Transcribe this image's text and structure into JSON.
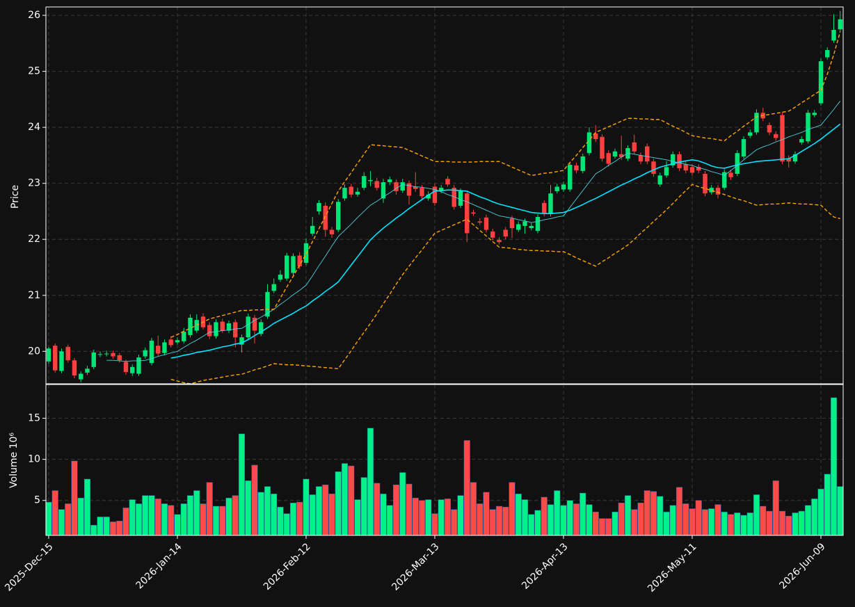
{
  "chart_data": {
    "type": "candlestick",
    "ylabel": "Price",
    "volume_ylabel": "Volume  10⁶",
    "up_color": "#00e676",
    "down_color": "#ff4040",
    "volume_up_color": "#00f08a",
    "volume_down_color": "#ff4a4a",
    "grid": true,
    "ylim": [
      19.42,
      26.15
    ],
    "yticks": [
      20,
      21,
      22,
      23,
      24,
      25,
      26
    ],
    "volume_ylim": [
      0.75,
      19.1
    ],
    "volume_yticks": [
      5,
      10,
      15
    ],
    "categories": [
      "2025-Dec-15",
      null,
      null,
      null,
      null,
      null,
      null,
      null,
      null,
      null,
      null,
      null,
      null,
      null,
      null,
      null,
      null,
      null,
      null,
      null,
      "2026-Jan-14",
      null,
      null,
      null,
      null,
      null,
      null,
      null,
      null,
      null,
      null,
      null,
      null,
      null,
      null,
      null,
      null,
      null,
      null,
      null,
      "2026-Feb-12",
      null,
      null,
      null,
      null,
      null,
      null,
      null,
      null,
      null,
      null,
      null,
      null,
      null,
      null,
      null,
      null,
      null,
      null,
      null,
      "2026-Mar-13",
      null,
      null,
      null,
      null,
      null,
      null,
      null,
      null,
      null,
      null,
      null,
      null,
      null,
      null,
      null,
      null,
      null,
      null,
      null,
      "2026-Apr-13",
      null,
      null,
      null,
      null,
      null,
      null,
      null,
      null,
      null,
      null,
      null,
      null,
      null,
      null,
      null,
      null,
      null,
      null,
      null,
      "2026-May-11",
      null,
      null,
      null,
      null,
      null,
      null,
      null,
      null,
      null,
      null,
      null,
      null,
      null,
      null,
      null,
      null,
      null,
      null,
      null,
      "2026-Jun-09",
      null,
      null,
      null
    ],
    "open": [
      19.82,
      20.1,
      19.65,
      20.08,
      19.84,
      19.5,
      19.62,
      19.72,
      19.94,
      19.95,
      19.97,
      19.93,
      19.81,
      19.61,
      19.6,
      19.91,
      19.79,
      20.1,
      19.97,
      20.21,
      20.16,
      20.18,
      20.29,
      20.37,
      20.62,
      20.47,
      20.27,
      20.53,
      20.37,
      20.52,
      20.12,
      20.25,
      20.6,
      20.31,
      20.62,
      21.08,
      21.28,
      21.3,
      21.4,
      21.71,
      21.58,
      22.1,
      22.5,
      22.6,
      22.17,
      22.17,
      22.73,
      22.94,
      22.8,
      22.92,
      23.04,
      23.04,
      22.73,
      23.02,
      23.02,
      22.87,
      23.0,
      22.94,
      22.92,
      22.73,
      22.94,
      22.86,
      23.08,
      22.92,
      22.6,
      22.82,
      22.48,
      22.32,
      22.39,
      22.14,
      21.99,
      22.17,
      22.37,
      22.17,
      22.24,
      22.2,
      22.15,
      22.65,
      22.45,
      22.86,
      22.89,
      22.89,
      23.32,
      23.22,
      23.54,
      23.89,
      23.83,
      23.54,
      23.48,
      23.52,
      23.44,
      23.73,
      23.5,
      23.66,
      23.39,
      22.98,
      23.14,
      23.32,
      23.52,
      23.34,
      23.29,
      23.29,
      23.17,
      22.84,
      22.92,
      22.92,
      23.19,
      23.17,
      23.48,
      23.85,
      23.91,
      24.26,
      24.04,
      23.88,
      24.22,
      23.45,
      23.39,
      23.73,
      23.75,
      24.22,
      24.43,
      25.25,
      25.55,
      25.75
    ],
    "high": [
      20.08,
      20.14,
      20.05,
      20.12,
      19.88,
      19.64,
      19.74,
      20.03,
      20.0,
      20.01,
      20.01,
      19.97,
      19.85,
      19.77,
      19.94,
      20.07,
      20.24,
      20.28,
      20.21,
      20.27,
      20.25,
      20.42,
      20.66,
      20.66,
      20.68,
      20.52,
      20.57,
      20.58,
      20.55,
      20.57,
      20.3,
      20.67,
      20.65,
      20.57,
      21.2,
      21.3,
      21.45,
      21.76,
      21.75,
      21.77,
      22.02,
      22.4,
      22.7,
      22.66,
      22.22,
      22.72,
      22.98,
      22.99,
      22.92,
      23.2,
      23.22,
      23.1,
      23.08,
      23.12,
      23.07,
      23.08,
      23.05,
      23.2,
      22.97,
      22.86,
      22.99,
      22.97,
      23.13,
      22.97,
      22.91,
      22.87,
      22.53,
      22.38,
      22.44,
      22.19,
      22.04,
      22.22,
      22.42,
      22.32,
      22.37,
      22.29,
      22.45,
      22.7,
      22.97,
      22.99,
      23.03,
      23.38,
      23.37,
      23.53,
      24.0,
      24.04,
      23.88,
      23.59,
      23.62,
      23.85,
      23.68,
      23.87,
      23.55,
      23.71,
      23.44,
      23.19,
      23.4,
      23.57,
      23.57,
      23.39,
      23.34,
      23.34,
      23.22,
      22.97,
      22.97,
      23.25,
      23.24,
      23.59,
      23.84,
      23.96,
      24.32,
      24.35,
      24.09,
      23.93,
      24.27,
      23.5,
      23.57,
      23.84,
      24.31,
      24.31,
      25.23,
      25.43,
      26.02,
      26.08
    ],
    "low": [
      19.78,
      19.62,
      19.61,
      19.8,
      19.52,
      19.45,
      19.58,
      19.68,
      19.9,
      19.91,
      19.87,
      19.8,
      19.58,
      19.56,
      19.56,
      19.87,
      19.75,
      19.92,
      19.93,
      20.07,
      20.12,
      20.14,
      20.25,
      20.33,
      20.39,
      20.22,
      20.23,
      20.33,
      20.33,
      20.07,
      19.98,
      20.21,
      20.14,
      20.27,
      20.58,
      21.04,
      21.24,
      21.26,
      21.36,
      21.47,
      21.54,
      22.06,
      22.44,
      22.05,
      22.03,
      22.13,
      22.69,
      22.75,
      22.76,
      22.88,
      22.95,
      22.87,
      22.65,
      22.97,
      22.8,
      22.83,
      22.62,
      22.85,
      22.72,
      22.69,
      22.6,
      22.82,
      22.94,
      22.53,
      22.56,
      21.95,
      22.42,
      22.26,
      22.12,
      21.98,
      21.91,
      22.0,
      22.02,
      22.13,
      22.1,
      22.16,
      22.11,
      22.41,
      22.41,
      22.82,
      22.85,
      22.85,
      23.18,
      23.18,
      23.5,
      23.74,
      23.39,
      23.3,
      23.44,
      23.42,
      23.4,
      23.52,
      23.34,
      23.34,
      23.12,
      22.94,
      23.1,
      23.28,
      23.22,
      23.18,
      23.14,
      23.18,
      22.77,
      22.8,
      22.73,
      22.88,
      23.06,
      23.13,
      23.44,
      23.81,
      23.87,
      24.11,
      23.86,
      23.76,
      23.34,
      23.28,
      23.35,
      23.69,
      23.71,
      24.18,
      24.39,
      25.21,
      25.51,
      25.71
    ],
    "close": [
      20.05,
      19.66,
      20.0,
      19.84,
      19.57,
      19.6,
      19.69,
      19.98,
      19.95,
      19.96,
      19.91,
      19.84,
      19.63,
      19.72,
      19.89,
      20.02,
      20.19,
      19.96,
      20.16,
      20.11,
      20.2,
      20.35,
      20.6,
      20.56,
      20.43,
      20.27,
      20.52,
      20.37,
      20.5,
      20.25,
      20.25,
      20.62,
      20.37,
      20.52,
      21.06,
      21.2,
      21.37,
      21.71,
      21.7,
      21.52,
      21.93,
      22.24,
      22.65,
      22.17,
      22.09,
      22.67,
      22.92,
      22.8,
      22.85,
      23.13,
      23.06,
      22.92,
      23.02,
      23.07,
      22.86,
      23.02,
      22.78,
      22.9,
      22.77,
      22.8,
      22.65,
      22.92,
      22.98,
      22.58,
      22.86,
      22.11,
      22.46,
      22.3,
      22.17,
      22.03,
      21.95,
      22.05,
      22.2,
      22.27,
      22.32,
      22.24,
      22.4,
      22.46,
      22.82,
      22.94,
      22.98,
      23.33,
      23.23,
      23.48,
      23.91,
      23.79,
      23.44,
      23.35,
      23.57,
      23.47,
      23.63,
      23.57,
      23.39,
      23.39,
      23.17,
      23.14,
      23.29,
      23.52,
      23.27,
      23.23,
      23.19,
      23.23,
      22.82,
      22.92,
      22.8,
      23.2,
      23.11,
      23.54,
      23.79,
      23.91,
      24.26,
      24.16,
      23.91,
      23.81,
      23.39,
      23.39,
      23.52,
      23.79,
      24.26,
      24.26,
      25.18,
      25.38,
      25.74,
      25.93
    ],
    "volume": [
      4.8,
      6.2,
      3.9,
      4.6,
      9.8,
      5.3,
      7.6,
      2.0,
      3.0,
      3.0,
      2.4,
      2.5,
      4.1,
      5.1,
      4.6,
      5.6,
      5.6,
      5.2,
      4.6,
      4.4,
      3.3,
      4.6,
      5.6,
      6.2,
      4.6,
      7.2,
      4.3,
      4.3,
      5.3,
      5.6,
      13.1,
      7.4,
      9.3,
      6.0,
      6.7,
      5.8,
      4.2,
      3.4,
      4.7,
      4.8,
      7.6,
      5.7,
      6.7,
      6.9,
      5.8,
      8.5,
      9.5,
      9.2,
      5.1,
      7.8,
      13.8,
      7.1,
      5.8,
      4.4,
      6.9,
      8.4,
      7.0,
      5.3,
      5.0,
      5.1,
      3.4,
      5.1,
      5.2,
      3.9,
      5.6,
      12.3,
      7.2,
      4.6,
      6.0,
      3.9,
      4.3,
      4.2,
      7.2,
      5.8,
      5.1,
      3.3,
      3.8,
      5.4,
      4.5,
      6.2,
      4.4,
      5.0,
      4.6,
      5.9,
      4.5,
      3.6,
      2.8,
      2.8,
      3.6,
      4.7,
      5.6,
      3.9,
      4.7,
      6.2,
      6.1,
      5.5,
      3.6,
      4.4,
      6.6,
      4.6,
      4.0,
      5.0,
      3.9,
      4.0,
      4.5,
      3.6,
      3.3,
      3.5,
      3.2,
      3.5,
      5.7,
      4.3,
      3.7,
      7.4,
      3.7,
      3.1,
      3.5,
      3.7,
      4.4,
      5.2,
      6.4,
      8.2,
      17.5,
      6.7
    ],
    "overlays": [
      {
        "color": "#00e5ff",
        "width": 1.6,
        "dashed": false,
        "values": [
          null,
          null,
          null,
          null,
          null,
          null,
          null,
          null,
          null,
          null,
          null,
          null,
          null,
          null,
          null,
          null,
          null,
          null,
          null,
          19.88,
          19.9,
          19.93,
          19.95,
          19.98,
          20.0,
          20.02,
          20.05,
          20.08,
          20.1,
          20.13,
          20.15,
          20.21,
          20.28,
          20.35,
          20.42,
          20.5,
          20.56,
          20.62,
          20.68,
          20.75,
          20.81,
          20.9,
          20.98,
          21.07,
          21.15,
          21.24,
          21.39,
          21.54,
          21.69,
          21.84,
          21.99,
          22.1,
          22.2,
          22.29,
          22.38,
          22.46,
          22.55,
          22.63,
          22.71,
          22.79,
          22.86,
          22.87,
          22.88,
          22.88,
          22.87,
          22.86,
          22.81,
          22.76,
          22.72,
          22.67,
          22.63,
          22.6,
          22.57,
          22.54,
          22.51,
          22.48,
          22.47,
          22.46,
          22.46,
          22.47,
          22.48,
          22.52,
          22.57,
          22.62,
          22.68,
          22.73,
          22.79,
          22.85,
          22.91,
          22.97,
          23.02,
          23.08,
          23.13,
          23.19,
          23.24,
          23.29,
          23.32,
          23.35,
          23.38,
          23.4,
          23.42,
          23.4,
          23.36,
          23.31,
          23.28,
          23.27,
          23.3,
          23.33,
          23.35,
          23.37,
          23.39,
          23.4,
          23.41,
          23.42,
          23.43,
          23.44,
          23.5,
          23.57,
          23.64,
          23.71,
          23.79,
          23.88,
          23.97,
          24.06
        ]
      },
      {
        "color": "#4dd0e1",
        "width": 0.9,
        "dashed": false,
        "values": [
          null,
          null,
          null,
          null,
          null,
          null,
          null,
          null,
          null,
          19.84,
          19.84,
          19.83,
          19.82,
          19.83,
          19.83,
          19.84,
          19.87,
          19.91,
          19.94,
          19.97,
          20.0,
          20.07,
          20.14,
          20.2,
          20.27,
          20.34,
          20.35,
          20.37,
          20.38,
          20.4,
          20.41,
          20.48,
          20.55,
          20.61,
          20.68,
          20.75,
          20.84,
          20.92,
          21.01,
          21.09,
          21.18,
          21.35,
          21.53,
          21.7,
          21.88,
          22.05,
          22.16,
          22.27,
          22.39,
          22.5,
          22.61,
          22.68,
          22.76,
          22.83,
          22.91,
          22.98,
          22.96,
          22.94,
          22.93,
          22.91,
          22.89,
          22.85,
          22.8,
          22.76,
          22.71,
          22.67,
          22.62,
          22.57,
          22.52,
          22.47,
          22.42,
          22.4,
          22.38,
          22.35,
          22.33,
          22.3,
          22.32,
          22.35,
          22.37,
          22.4,
          22.42,
          22.57,
          22.72,
          22.87,
          23.02,
          23.17,
          23.24,
          23.32,
          23.39,
          23.47,
          23.54,
          23.52,
          23.5,
          23.48,
          23.46,
          23.44,
          23.42,
          23.39,
          23.37,
          23.34,
          23.32,
          23.28,
          23.25,
          23.21,
          23.18,
          23.14,
          23.23,
          23.32,
          23.42,
          23.51,
          23.6,
          23.65,
          23.69,
          23.74,
          23.78,
          23.83,
          23.87,
          23.91,
          23.96,
          24.0,
          24.04,
          24.18,
          24.32,
          24.47
        ]
      },
      {
        "color": "#ffa500",
        "width": 1.4,
        "dashed": true,
        "values": [
          null,
          null,
          null,
          null,
          null,
          null,
          null,
          null,
          null,
          null,
          null,
          null,
          null,
          null,
          null,
          null,
          null,
          null,
          null,
          20.25,
          20.3,
          20.36,
          20.41,
          20.47,
          20.52,
          20.58,
          20.61,
          20.64,
          20.67,
          20.7,
          20.73,
          20.73,
          20.74,
          20.74,
          20.75,
          20.75,
          20.95,
          21.15,
          21.34,
          21.54,
          21.74,
          21.96,
          22.19,
          22.41,
          22.64,
          22.86,
          23.03,
          23.19,
          23.36,
          23.52,
          23.69,
          23.68,
          23.67,
          23.66,
          23.65,
          23.64,
          23.59,
          23.54,
          23.49,
          23.44,
          23.39,
          23.39,
          23.39,
          23.38,
          23.38,
          23.38,
          23.38,
          23.39,
          23.39,
          23.39,
          23.39,
          23.34,
          23.29,
          23.24,
          23.19,
          23.14,
          23.16,
          23.18,
          23.19,
          23.21,
          23.23,
          23.37,
          23.5,
          23.64,
          23.77,
          23.91,
          23.96,
          24.01,
          24.06,
          24.11,
          24.16,
          24.16,
          24.15,
          24.15,
          24.14,
          24.14,
          24.08,
          24.02,
          23.97,
          23.91,
          23.85,
          23.83,
          23.81,
          23.8,
          23.78,
          23.76,
          23.85,
          23.93,
          24.02,
          24.1,
          24.19,
          24.21,
          24.23,
          24.25,
          24.27,
          24.29,
          24.36,
          24.44,
          24.51,
          24.59,
          24.66,
          24.95,
          25.3,
          25.71
        ]
      },
      {
        "color": "#ffa500",
        "width": 1.4,
        "dashed": true,
        "values": [
          null,
          null,
          null,
          null,
          null,
          null,
          null,
          null,
          null,
          null,
          null,
          null,
          null,
          null,
          null,
          null,
          null,
          null,
          null,
          19.5,
          19.47,
          19.44,
          19.42,
          19.45,
          19.48,
          19.5,
          19.52,
          19.54,
          19.56,
          19.58,
          19.59,
          19.63,
          19.67,
          19.7,
          19.74,
          19.78,
          19.77,
          19.76,
          19.76,
          19.75,
          19.74,
          19.73,
          19.72,
          19.71,
          19.7,
          19.69,
          19.85,
          20.01,
          20.18,
          20.34,
          20.5,
          20.67,
          20.85,
          21.02,
          21.2,
          21.37,
          21.52,
          21.67,
          21.81,
          21.96,
          22.11,
          22.16,
          22.21,
          22.26,
          22.31,
          22.36,
          22.26,
          22.16,
          22.06,
          21.96,
          21.86,
          21.85,
          21.84,
          21.82,
          21.81,
          21.8,
          21.8,
          21.79,
          21.79,
          21.78,
          21.78,
          21.73,
          21.67,
          21.62,
          21.57,
          21.52,
          21.6,
          21.67,
          21.75,
          21.82,
          21.9,
          22.0,
          22.11,
          22.21,
          22.32,
          22.42,
          22.53,
          22.64,
          22.76,
          22.87,
          22.98,
          22.94,
          22.91,
          22.87,
          22.84,
          22.8,
          22.76,
          22.72,
          22.69,
          22.65,
          22.61,
          22.62,
          22.63,
          22.63,
          22.64,
          22.65,
          22.64,
          22.63,
          22.63,
          22.62,
          22.61,
          22.5,
          22.4,
          22.37
        ]
      }
    ]
  }
}
